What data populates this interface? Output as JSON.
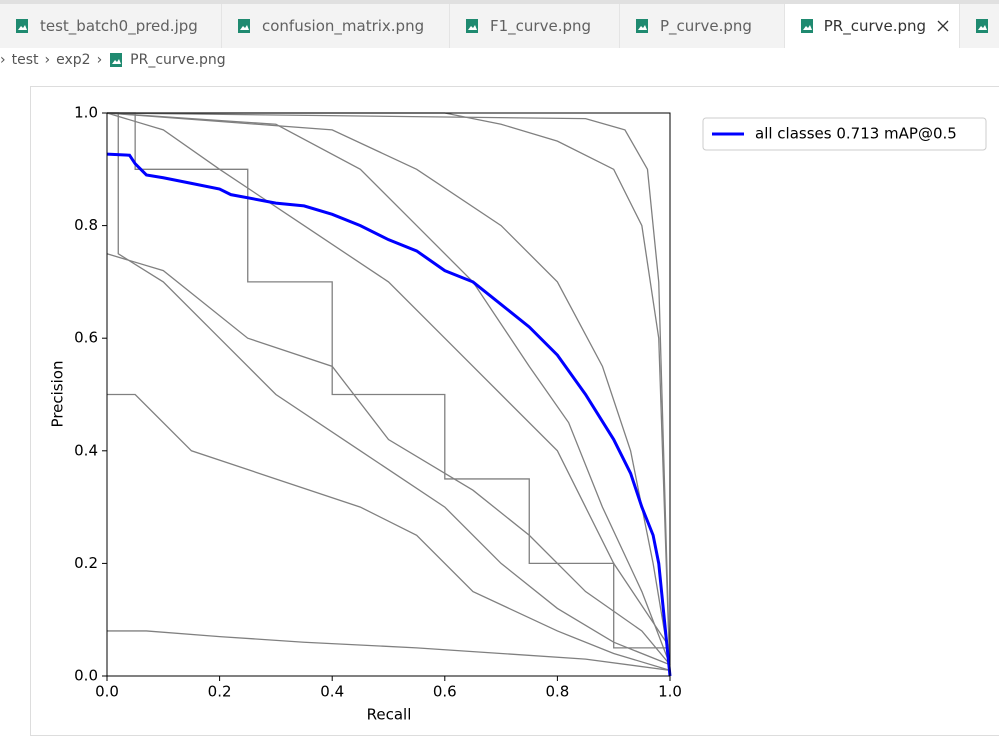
{
  "tabs": [
    "test_batch0_pred.jpg",
    "confusion_matrix.png",
    "F1_curve.png",
    "P_curve.png",
    "PR_curve.png"
  ],
  "breadcrumb": [
    "test",
    "exp2",
    "PR_curve.png"
  ],
  "chart_data": {
    "type": "line",
    "x_label": "Recall",
    "y_label": "Precision",
    "xlim": [
      0,
      1
    ],
    "ylim": [
      0,
      1
    ],
    "xticks": [
      {
        "value": 0,
        "label": "0.0"
      },
      0.2,
      0.4,
      0.6,
      0.8,
      {
        "value": 1,
        "label": "1.0"
      }
    ],
    "yticks": [
      {
        "value": 0,
        "label": "0.0"
      },
      0.2,
      0.4,
      0.6,
      0.8,
      {
        "value": 1,
        "label": "1.0"
      }
    ],
    "legend_position": "outside-upper-right",
    "series": [
      {
        "color": "#808080",
        "x": [
          0,
          0.05,
          0.05,
          0.25,
          0.25,
          0.4,
          0.4,
          0.6,
          0.6,
          0.75,
          0.75,
          0.9,
          0.9,
          1
        ],
        "values": [
          1,
          1,
          0.9,
          0.9,
          0.7,
          0.7,
          0.5,
          0.5,
          0.35,
          0.35,
          0.2,
          0.2,
          0.05,
          0.05
        ]
      },
      {
        "color": "#808080",
        "x": [
          0,
          0.6,
          0.7,
          0.8,
          0.9,
          0.95,
          0.98,
          1
        ],
        "values": [
          1,
          1,
          0.98,
          0.95,
          0.9,
          0.8,
          0.6,
          0
        ]
      },
      {
        "color": "#808080",
        "x": [
          0,
          0.85,
          0.92,
          0.96,
          0.98,
          1
        ],
        "values": [
          1,
          0.99,
          0.97,
          0.9,
          0.7,
          0
        ]
      },
      {
        "color": "#808080",
        "x": [
          0,
          0.02,
          0.02,
          0.1,
          0.2,
          0.3,
          0.45,
          0.6,
          0.7,
          0.8,
          0.9,
          1
        ],
        "values": [
          1,
          1,
          0.75,
          0.7,
          0.6,
          0.5,
          0.4,
          0.3,
          0.2,
          0.12,
          0.06,
          0.02
        ]
      },
      {
        "color": "#808080",
        "x": [
          0,
          0.1,
          0.2,
          0.35,
          0.5,
          0.6,
          0.7,
          0.8,
          0.85,
          0.9,
          1
        ],
        "values": [
          1,
          0.97,
          0.9,
          0.8,
          0.7,
          0.6,
          0.5,
          0.4,
          0.3,
          0.2,
          0.05
        ]
      },
      {
        "color": "#808080",
        "x": [
          0,
          0.3,
          0.45,
          0.55,
          0.65,
          0.75,
          0.82,
          0.88,
          0.95,
          1
        ],
        "values": [
          1,
          0.98,
          0.9,
          0.8,
          0.7,
          0.55,
          0.45,
          0.3,
          0.15,
          0.02
        ]
      },
      {
        "color": "#808080",
        "x": [
          0,
          0.05,
          0.15,
          0.3,
          0.45,
          0.55,
          0.65,
          0.8,
          0.9,
          1
        ],
        "values": [
          0.5,
          0.5,
          0.4,
          0.35,
          0.3,
          0.25,
          0.15,
          0.08,
          0.04,
          0.01
        ]
      },
      {
        "color": "#808080",
        "x": [
          0,
          0.07,
          0.2,
          0.35,
          0.55,
          0.7,
          0.85,
          1
        ],
        "values": [
          0.08,
          0.08,
          0.07,
          0.06,
          0.05,
          0.04,
          0.03,
          0.01
        ]
      },
      {
        "color": "#808080",
        "x": [
          0,
          0.4,
          0.55,
          0.7,
          0.8,
          0.88,
          0.93,
          0.97,
          1
        ],
        "values": [
          1,
          0.97,
          0.9,
          0.8,
          0.7,
          0.55,
          0.4,
          0.2,
          0.02
        ]
      },
      {
        "color": "#808080",
        "x": [
          0,
          0.1,
          0.25,
          0.4,
          0.5,
          0.65,
          0.75,
          0.85,
          0.95,
          1
        ],
        "values": [
          0.75,
          0.72,
          0.6,
          0.55,
          0.42,
          0.33,
          0.25,
          0.15,
          0.08,
          0.02
        ]
      },
      {
        "name": "all classes 0.713 mAP@0.5",
        "color": "#0000ff",
        "x": [
          0,
          0.04,
          0.05,
          0.07,
          0.1,
          0.15,
          0.2,
          0.22,
          0.3,
          0.35,
          0.4,
          0.45,
          0.5,
          0.55,
          0.6,
          0.65,
          0.7,
          0.75,
          0.8,
          0.85,
          0.9,
          0.93,
          0.95,
          0.97,
          0.98,
          0.99,
          1
        ],
        "values": [
          0.927,
          0.925,
          0.91,
          0.89,
          0.885,
          0.875,
          0.865,
          0.855,
          0.84,
          0.835,
          0.82,
          0.8,
          0.775,
          0.755,
          0.72,
          0.7,
          0.66,
          0.62,
          0.57,
          0.5,
          0.42,
          0.36,
          0.3,
          0.25,
          0.2,
          0.1,
          0
        ]
      }
    ]
  }
}
